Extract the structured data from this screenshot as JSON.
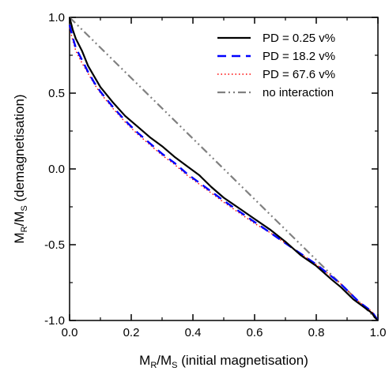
{
  "chart_data": {
    "type": "line",
    "xlabel": {
      "main": "M",
      "sub": "R",
      "mid": "/M",
      "sub2": "S",
      "rest": " (initial magnetisation)"
    },
    "ylabel": {
      "main": "M",
      "sub": "R",
      "mid": "/M",
      "sub2": "S",
      "rest": " (demagnetisation)"
    },
    "xlim": [
      0.0,
      1.0
    ],
    "ylim": [
      -1.0,
      1.0
    ],
    "xticks": [
      "0.0",
      "0.2",
      "0.4",
      "0.6",
      "0.8",
      "1.0"
    ],
    "yticks": [
      "-1.0",
      "-0.5",
      "0.0",
      "0.5",
      "1.0"
    ],
    "legend_position": "top-right",
    "grid": false,
    "series": [
      {
        "name": "PD = 0.25 v%",
        "color": "#000000",
        "style": "solid",
        "x": [
          0.0,
          0.01,
          0.02,
          0.04,
          0.06,
          0.08,
          0.1,
          0.14,
          0.18,
          0.22,
          0.26,
          0.3,
          0.34,
          0.38,
          0.42,
          0.46,
          0.5,
          0.55,
          0.6,
          0.65,
          0.7,
          0.75,
          0.8,
          0.85,
          0.88,
          0.9,
          0.92,
          0.94,
          0.96,
          0.98,
          0.99,
          1.0
        ],
        "y": [
          1.0,
          0.92,
          0.86,
          0.78,
          0.68,
          0.61,
          0.54,
          0.44,
          0.35,
          0.28,
          0.21,
          0.15,
          0.08,
          0.02,
          -0.04,
          -0.12,
          -0.19,
          -0.26,
          -0.33,
          -0.4,
          -0.48,
          -0.57,
          -0.64,
          -0.73,
          -0.78,
          -0.82,
          -0.86,
          -0.89,
          -0.92,
          -0.95,
          -0.98,
          -1.0
        ]
      },
      {
        "name": "PD = 18.2 v%",
        "color": "#0000ff",
        "style": "dashed",
        "x": [
          0.0,
          0.01,
          0.02,
          0.04,
          0.06,
          0.08,
          0.1,
          0.14,
          0.18,
          0.22,
          0.26,
          0.3,
          0.34,
          0.38,
          0.42,
          0.46,
          0.5,
          0.55,
          0.6,
          0.65,
          0.7,
          0.75,
          0.8,
          0.85,
          0.88,
          0.9,
          0.92,
          0.94,
          0.96,
          0.98,
          0.99,
          1.0
        ],
        "y": [
          0.95,
          0.87,
          0.8,
          0.72,
          0.64,
          0.57,
          0.51,
          0.41,
          0.32,
          0.24,
          0.17,
          0.1,
          0.04,
          -0.03,
          -0.09,
          -0.15,
          -0.21,
          -0.28,
          -0.35,
          -0.42,
          -0.49,
          -0.56,
          -0.63,
          -0.71,
          -0.76,
          -0.8,
          -0.84,
          -0.88,
          -0.91,
          -0.94,
          -0.97,
          -1.0
        ]
      },
      {
        "name": "PD = 67.6 v%",
        "color": "#ff0000",
        "style": "dotted",
        "x": [
          0.0,
          0.01,
          0.02,
          0.04,
          0.06,
          0.08,
          0.1,
          0.14,
          0.18,
          0.22,
          0.26,
          0.3,
          0.34,
          0.38,
          0.42,
          0.46,
          0.5,
          0.55,
          0.6,
          0.65,
          0.7,
          0.75,
          0.8,
          0.85,
          0.88,
          0.9,
          0.92,
          0.94,
          0.96,
          0.98,
          0.99,
          1.0
        ],
        "y": [
          0.93,
          0.85,
          0.78,
          0.7,
          0.63,
          0.56,
          0.5,
          0.4,
          0.31,
          0.23,
          0.16,
          0.09,
          0.03,
          -0.04,
          -0.1,
          -0.16,
          -0.22,
          -0.29,
          -0.36,
          -0.42,
          -0.49,
          -0.56,
          -0.63,
          -0.71,
          -0.76,
          -0.8,
          -0.84,
          -0.88,
          -0.91,
          -0.94,
          -0.97,
          -1.0
        ]
      },
      {
        "name": "no interaction",
        "color": "#808080",
        "style": "dashdotdot",
        "x": [
          0.0,
          1.0
        ],
        "y": [
          1.0,
          -1.0
        ]
      }
    ]
  }
}
